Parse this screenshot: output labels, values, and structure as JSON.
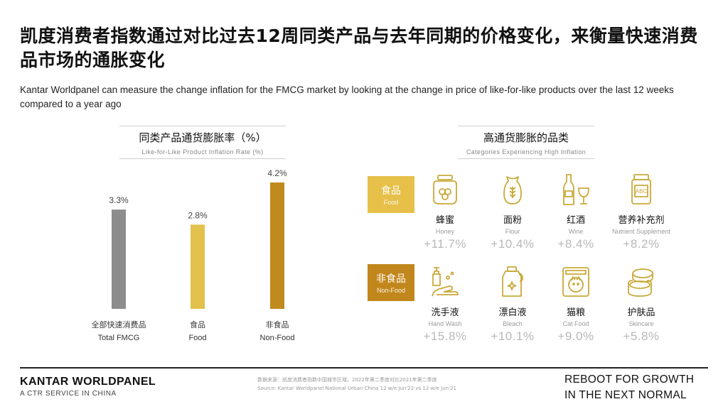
{
  "title": "凯度消费者指数通过对比过去12周同类产品与去年同期的价格变化，来衡量快速消费品市场的通胀变化",
  "subtitle": "Kantar Worldpanel can measure the change inflation for the FMCG market by looking at the change in price of like-for-like products over the last 12 weeks compared to a year ago",
  "left_section": {
    "title_cn": "同类产品通货膨胀率（%）",
    "title_en": "Like-for-Like Product Inflation Rate (%)"
  },
  "right_section": {
    "title_cn": "高通货膨胀的品类",
    "title_en": "Categories Experiencing High Inflation",
    "groups": [
      {
        "label_cn": "食品",
        "label_en": "Food",
        "items": [
          {
            "cn": "蜂蜜",
            "en": "Honey",
            "value": "+11.7%",
            "icon": "honey-jar-icon"
          },
          {
            "cn": "面粉",
            "en": "Flour",
            "value": "+10.4%",
            "icon": "flour-sack-icon"
          },
          {
            "cn": "红酒",
            "en": "Wine",
            "value": "+8.4%",
            "icon": "wine-icon"
          },
          {
            "cn": "营养补充剂",
            "en": "Nutrient  Supplement",
            "value": "+8.2%",
            "icon": "supplement-bottle-icon"
          }
        ]
      },
      {
        "label_cn": "非食品",
        "label_en": "Non-Food",
        "items": [
          {
            "cn": "洗手液",
            "en": "Hand Wash",
            "value": "+15.8%",
            "icon": "hand-wash-icon"
          },
          {
            "cn": "漂白液",
            "en": "Bleach",
            "value": "+10.1%",
            "icon": "bleach-bottle-icon"
          },
          {
            "cn": "猫粮",
            "en": "Cat Food",
            "value": "+9.0%",
            "icon": "cat-food-icon"
          },
          {
            "cn": "护肤品",
            "en": "Skincare",
            "value": "+5.8%",
            "icon": "skincare-jar-icon"
          }
        ]
      }
    ]
  },
  "chart_data": {
    "type": "bar",
    "categories": [
      {
        "cn": "全部快速消费品",
        "en": "Total FMCG"
      },
      {
        "cn": "食品",
        "en": "Food"
      },
      {
        "cn": "非食品",
        "en": "Non-Food"
      }
    ],
    "values": [
      3.3,
      2.8,
      4.2
    ],
    "value_labels": [
      "3.3%",
      "2.8%",
      "4.2%"
    ],
    "colors": [
      "#8c8c8c",
      "#e2c14c",
      "#c08a1c"
    ],
    "ylim": [
      0,
      4.2
    ],
    "grid": false
  },
  "colors": {
    "accent_gold": "#e6c049",
    "accent_brown": "#c2871c",
    "icon_gold": "#c9a93a"
  },
  "footer": {
    "brand": "KANTAR WORLDPANEL",
    "brand_sub": "A CTR SERVICE IN CHINA",
    "source_cn": "数据来源：凯度消费者指数中国城市区域，2022年第二季度对比2021年第二季度",
    "source_en": "Source: Kantar Worldpanel National Urban China 12 w/e Jun'22 vs 12 w/e Jun'21",
    "slogan_line1": "REBOOT FOR GROWTH",
    "slogan_line2": "IN THE NEXT NORMAL"
  }
}
